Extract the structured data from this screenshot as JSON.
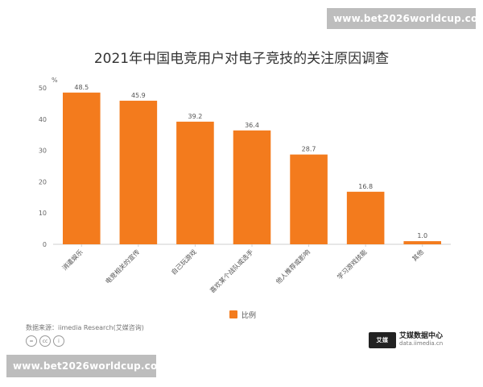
{
  "watermark_top": "www.bet2026worldcup.com",
  "watermark_bottom": "www.bet2026worldcup.com",
  "chart_data": {
    "type": "bar",
    "title": "2021年中国电竞用户对电子竞技的关注原因调查",
    "ylabel": "%",
    "xlabel": "",
    "ylim": [
      0,
      50
    ],
    "yticks": [
      0,
      10,
      20,
      30,
      40,
      50
    ],
    "grid": false,
    "legend_position": "bottom",
    "categories": [
      "消遣娱乐",
      "电竞相关的宣传",
      "自己玩游戏",
      "喜欢某个战队或选手",
      "他人推荐或影响",
      "学习游戏技能",
      "其他"
    ],
    "series": [
      {
        "name": "比例",
        "color": "#f37b1d",
        "values": [
          48.5,
          45.9,
          39.2,
          36.4,
          28.7,
          16.8,
          1.0
        ],
        "labels": [
          "48.5",
          "45.9",
          "39.2",
          "36.4",
          "28.7",
          "16.8",
          "1.0"
        ]
      }
    ]
  },
  "footer": {
    "source": "数据来源：iimedia Research(艾媒咨询)",
    "cc_icons": [
      "=",
      "cc",
      "i"
    ],
    "brand_mark": "艾媒",
    "brand_name": "艾媒数据中心",
    "brand_url": "data.iimedia.cn"
  }
}
